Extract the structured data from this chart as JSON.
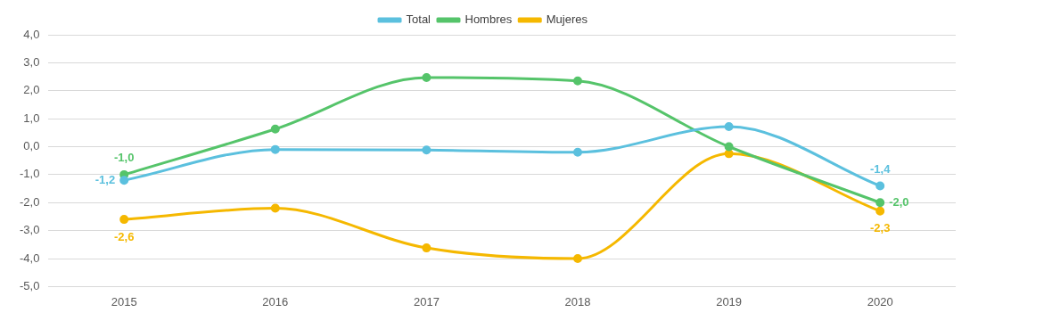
{
  "chart_data": {
    "type": "line",
    "categories": [
      "2015",
      "2016",
      "2017",
      "2018",
      "2019",
      "2020"
    ],
    "ylim": [
      -5,
      4
    ],
    "yticks": [
      {
        "value": 4,
        "label": "4,0"
      },
      {
        "value": 3,
        "label": "3,0"
      },
      {
        "value": 2,
        "label": "2,0"
      },
      {
        "value": 1,
        "label": "1,0"
      },
      {
        "value": 0,
        "label": "0,0"
      },
      {
        "value": -1,
        "label": "-1,0"
      },
      {
        "value": -2,
        "label": "-2,0"
      },
      {
        "value": -3,
        "label": "-3,0"
      },
      {
        "value": -4,
        "label": "-4,0"
      },
      {
        "value": -5,
        "label": "-5,0"
      }
    ],
    "grid": "y",
    "legend": "top",
    "marker": "circle",
    "line_style": "solid",
    "series": [
      {
        "name": "Total",
        "color": "#5bc0de",
        "values": [
          -1.2,
          -0.1,
          -0.12,
          -0.2,
          0.72,
          -1.4
        ],
        "value_labels": [
          "-1,2",
          null,
          null,
          null,
          null,
          "-1,4"
        ]
      },
      {
        "name": "Hombres",
        "color": "#55c46a",
        "values": [
          -1.0,
          0.63,
          2.47,
          2.35,
          0.0,
          -2.0
        ],
        "value_labels": [
          "-1,0",
          null,
          null,
          null,
          null,
          "-2,0"
        ]
      },
      {
        "name": "Mujeres",
        "color": "#f5b800",
        "values": [
          -2.6,
          -2.2,
          -3.62,
          -4.0,
          -0.25,
          -2.3
        ],
        "value_labels": [
          "-2,6",
          null,
          null,
          null,
          null,
          "-2,3"
        ]
      }
    ]
  }
}
